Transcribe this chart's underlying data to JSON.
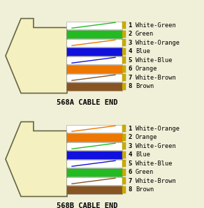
{
  "bg_color": "#f0f0d8",
  "connector_color": "#f5f0c0",
  "connector_outline": "#666644",
  "diagrams": [
    {
      "label": "568A CABLE END",
      "wires": [
        {
          "name": "White-Green",
          "color": "#ffffff",
          "stripe": "#22bb22",
          "solid": false
        },
        {
          "name": "Green",
          "color": "#22bb22",
          "stripe": null,
          "solid": true
        },
        {
          "name": "White-Orange",
          "color": "#ffffff",
          "stripe": "#ee7700",
          "solid": false
        },
        {
          "name": "Blue",
          "color": "#1111dd",
          "stripe": null,
          "solid": true
        },
        {
          "name": "White-Blue",
          "color": "#ffffff",
          "stripe": "#1111dd",
          "solid": false
        },
        {
          "name": "Orange",
          "color": "#ee7700",
          "stripe": null,
          "solid": true
        },
        {
          "name": "White-Brown",
          "color": "#ffffff",
          "stripe": "#885522",
          "solid": false
        },
        {
          "name": "Brown",
          "color": "#885522",
          "stripe": null,
          "solid": true
        }
      ]
    },
    {
      "label": "568B CABLE END",
      "wires": [
        {
          "name": "White-Orange",
          "color": "#ffffff",
          "stripe": "#ee7700",
          "solid": false
        },
        {
          "name": "Orange",
          "color": "#ee7700",
          "stripe": null,
          "solid": true
        },
        {
          "name": "White-Green",
          "color": "#ffffff",
          "stripe": "#22bb22",
          "solid": false
        },
        {
          "name": "Blue",
          "color": "#1111dd",
          "stripe": null,
          "solid": true
        },
        {
          "name": "White-Blue",
          "color": "#ffffff",
          "stripe": "#1111dd",
          "solid": false
        },
        {
          "name": "Green",
          "color": "#22bb22",
          "stripe": null,
          "solid": true
        },
        {
          "name": "White-Brown",
          "color": "#ffffff",
          "stripe": "#885522",
          "solid": false
        },
        {
          "name": "Brown",
          "color": "#885522",
          "stripe": null,
          "solid": true
        }
      ]
    }
  ]
}
